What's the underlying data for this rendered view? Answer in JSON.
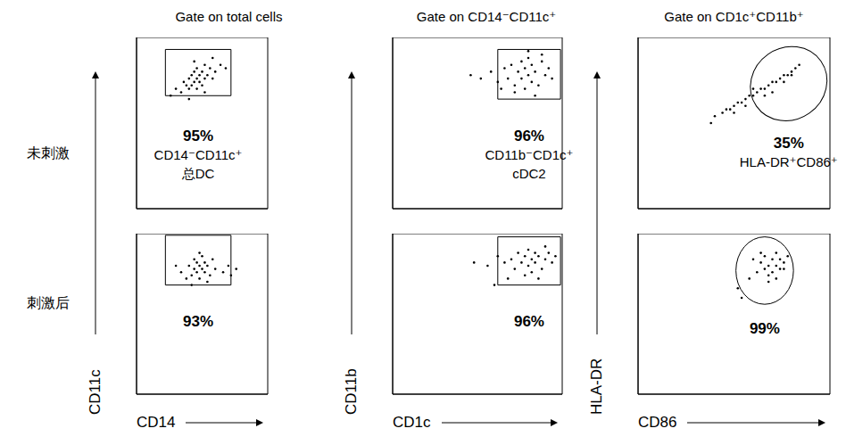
{
  "row_labels": [
    "未刺激",
    "刺激后"
  ],
  "chart_data": [
    {
      "type": "scatter",
      "title": "Gate on total cells",
      "xlim": [
        0,
        5
      ],
      "ylim": [
        0,
        5
      ],
      "xticks": [
        0,
        1,
        2,
        3,
        4,
        5
      ],
      "yticks": [
        0,
        1,
        2,
        3,
        4,
        5
      ],
      "tick_labels": false,
      "color": "#000000",
      "marker": "dot",
      "x": [
        1.5,
        1.7,
        1.8,
        1.9,
        2.0,
        2.0,
        2.1,
        2.1,
        2.2,
        2.2,
        2.3,
        2.3,
        2.3,
        2.4,
        2.4,
        2.5,
        2.5,
        2.6,
        2.6,
        2.7,
        2.8,
        2.9,
        3.0,
        3.2,
        3.4,
        1.3,
        2.0,
        2.6,
        2.2,
        2.9
      ],
      "y": [
        3.5,
        3.4,
        3.7,
        3.6,
        3.8,
        3.5,
        3.9,
        3.6,
        3.7,
        4.0,
        3.8,
        3.5,
        4.1,
        3.7,
        3.9,
        3.6,
        4.0,
        3.8,
        4.2,
        3.9,
        4.1,
        3.8,
        4.0,
        4.2,
        4.1,
        3.3,
        3.2,
        3.4,
        4.3,
        4.4
      ],
      "gate": {
        "shape": "rect",
        "x": [
          1.1,
          3.6
        ],
        "y": [
          3.3,
          4.65
        ]
      },
      "annotation": [
        "95%",
        "CD14⁻CD11c⁺",
        "总DC"
      ]
    },
    {
      "type": "scatter",
      "title": "Gate on CD14⁻CD11c⁺",
      "xlim": [
        0,
        5
      ],
      "ylim": [
        0,
        5
      ],
      "xticks": [
        0,
        1,
        2,
        3,
        4,
        5
      ],
      "yticks": [
        0,
        1,
        2,
        3,
        4,
        5
      ],
      "tick_labels": false,
      "color": "#000000",
      "marker": "dot",
      "x": [
        2.3,
        2.6,
        2.9,
        3.1,
        3.3,
        3.4,
        3.5,
        3.6,
        3.7,
        3.8,
        3.8,
        3.9,
        3.9,
        4.0,
        4.0,
        4.1,
        4.1,
        4.2,
        4.3,
        4.4,
        4.5,
        4.6,
        4.7,
        3.6,
        4.2,
        4.4,
        3.2,
        4.0
      ],
      "y": [
        3.9,
        3.8,
        4.0,
        3.7,
        4.1,
        3.8,
        4.2,
        3.6,
        4.0,
        3.8,
        4.3,
        3.5,
        4.1,
        3.9,
        4.4,
        3.7,
        4.2,
        4.0,
        3.6,
        4.3,
        3.9,
        4.1,
        3.8,
        3.4,
        3.3,
        4.5,
        3.5,
        4.6
      ],
      "gate": {
        "shape": "rect",
        "x": [
          3.1,
          4.95
        ],
        "y": [
          3.2,
          4.65
        ]
      },
      "annotation": [
        "96%",
        "CD11b⁻CD1c⁺",
        "cDC2"
      ]
    },
    {
      "type": "scatter",
      "title": "Gate on CD1c⁺CD11b⁺",
      "xlim": [
        0,
        5
      ],
      "ylim": [
        0,
        5
      ],
      "xticks": [
        0,
        1,
        2,
        3,
        4,
        5
      ],
      "yticks": [
        0,
        1,
        2,
        3,
        4,
        5
      ],
      "tick_labels": false,
      "color": "#000000",
      "marker": "dot",
      "x": [
        1.9,
        2.0,
        2.2,
        2.3,
        2.4,
        2.5,
        2.6,
        2.7,
        2.8,
        2.9,
        3.0,
        3.1,
        3.2,
        3.3,
        3.4,
        3.5,
        3.6,
        3.7,
        3.8,
        3.9,
        4.0,
        4.1,
        4.2,
        2.5,
        3.0,
        3.5,
        3.8,
        2.8,
        3.3,
        4.0
      ],
      "y": [
        2.5,
        2.7,
        2.8,
        2.9,
        2.9,
        3.0,
        3.1,
        3.1,
        3.2,
        3.3,
        3.3,
        3.4,
        3.5,
        3.5,
        3.6,
        3.7,
        3.7,
        3.8,
        3.9,
        3.9,
        4.0,
        4.1,
        4.2,
        2.8,
        3.5,
        3.4,
        3.7,
        3.0,
        3.3,
        3.9
      ],
      "gate": {
        "shape": "ellipse",
        "x": [
          2.9,
          4.95
        ],
        "y": [
          2.6,
          4.7
        ]
      },
      "annotation": [
        "35%",
        "HLA-DR⁺CD86⁺"
      ]
    },
    {
      "type": "scatter",
      "xlabel": "CD14",
      "ylabel": "CD11c",
      "xlim": [
        0,
        5
      ],
      "ylim": [
        0,
        5
      ],
      "xticks": [
        0,
        1,
        2,
        3,
        4,
        5
      ],
      "yticks": [
        0,
        1,
        2,
        3,
        4,
        5
      ],
      "tick_labels": false,
      "color": "#000000",
      "marker": "dot",
      "x": [
        1.7,
        1.9,
        2.0,
        2.1,
        2.2,
        2.2,
        2.3,
        2.3,
        2.4,
        2.4,
        2.5,
        2.5,
        2.6,
        2.6,
        2.7,
        2.8,
        2.9,
        3.0,
        3.3,
        3.5,
        3.6,
        3.8,
        2.1,
        2.7,
        2.4,
        1.5
      ],
      "y": [
        3.8,
        3.6,
        4.0,
        3.7,
        3.9,
        4.2,
        3.8,
        4.1,
        3.6,
        4.0,
        3.9,
        4.3,
        3.8,
        4.1,
        4.0,
        3.7,
        4.2,
        3.9,
        3.8,
        4.0,
        3.7,
        3.9,
        3.4,
        3.5,
        4.4,
        4.0
      ],
      "gate": {
        "shape": "rect",
        "x": [
          1.1,
          3.6
        ],
        "y": [
          3.4,
          4.95
        ]
      },
      "annotation": [
        "93%"
      ]
    },
    {
      "type": "scatter",
      "xlabel": "CD1c",
      "ylabel": "CD11b",
      "xlim": [
        0,
        5
      ],
      "ylim": [
        0,
        5
      ],
      "xticks": [
        0,
        1,
        2,
        3,
        4,
        5
      ],
      "yticks": [
        0,
        1,
        2,
        3,
        4,
        5
      ],
      "tick_labels": false,
      "color": "#000000",
      "marker": "dot",
      "x": [
        2.4,
        2.8,
        3.1,
        3.3,
        3.5,
        3.6,
        3.7,
        3.8,
        3.9,
        4.0,
        4.0,
        4.1,
        4.1,
        4.2,
        4.2,
        4.3,
        4.4,
        4.5,
        4.6,
        4.7,
        4.8,
        3.9,
        4.3,
        4.5,
        3.4,
        3.0
      ],
      "y": [
        4.1,
        4.0,
        4.3,
        4.1,
        4.2,
        3.9,
        4.4,
        4.1,
        4.3,
        4.0,
        4.5,
        4.2,
        3.8,
        4.4,
        4.1,
        4.3,
        3.9,
        4.2,
        4.4,
        4.1,
        4.3,
        3.7,
        3.6,
        4.6,
        3.6,
        3.4
      ],
      "gate": {
        "shape": "rect",
        "x": [
          3.1,
          4.95
        ],
        "y": [
          3.4,
          4.9
        ]
      },
      "annotation": [
        "96%"
      ]
    },
    {
      "type": "scatter",
      "xlabel": "CD86",
      "ylabel": "HLA-DR",
      "xlim": [
        0,
        5
      ],
      "ylim": [
        0,
        5
      ],
      "xticks": [
        0,
        1,
        2,
        3,
        4,
        5
      ],
      "yticks": [
        0,
        1,
        2,
        3,
        4,
        5
      ],
      "tick_labels": false,
      "color": "#000000",
      "marker": "dot",
      "x": [
        2.6,
        2.9,
        3.1,
        3.2,
        3.3,
        3.3,
        3.4,
        3.4,
        3.5,
        3.5,
        3.6,
        3.6,
        3.7,
        3.7,
        3.8,
        3.9,
        3.0,
        3.4,
        3.6,
        3.8,
        3.2,
        2.7
      ],
      "y": [
        3.3,
        3.6,
        3.8,
        4.1,
        3.9,
        4.3,
        3.7,
        4.0,
        4.2,
        3.8,
        4.4,
        4.0,
        3.9,
        4.2,
        4.1,
        4.3,
        4.2,
        3.5,
        3.6,
        3.9,
        4.4,
        3.0
      ],
      "gate": {
        "shape": "ellipse",
        "x": [
          2.55,
          4.05
        ],
        "y": [
          2.8,
          4.9
        ]
      },
      "annotation": [
        "99%"
      ]
    }
  ]
}
